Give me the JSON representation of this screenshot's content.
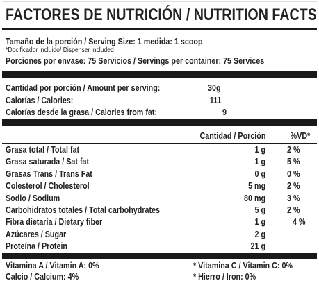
{
  "title": "FACTORES DE NUTRICIÓN / NUTRITION FACTS",
  "serving": {
    "lines": [
      "Tamaño de la porción / Serving Size: 1 medida: 1 scoop",
      "*Docificador incluido/ Dispenser included",
      "Porciones por envase: 75 Servicios / Servings per container: 75 Services"
    ]
  },
  "per_serving": {
    "rows": [
      [
        "Cantidad por porción / Amount per serving:",
        "30g"
      ],
      [
        "Calorías / Calories:",
        "111"
      ],
      [
        "Calorías desde la grasa / Calories from fat:",
        "9"
      ]
    ]
  },
  "table": {
    "header": [
      "Cantidad / Porción",
      "%VD*"
    ],
    "rows": [
      [
        "Grasa total / Total fat",
        "1 g",
        "2 %"
      ],
      [
        "Grasa saturada / Sat fat",
        "1 g",
        "5 %"
      ],
      [
        "Grasas Trans / Trans Fat",
        "0 g",
        "0 %"
      ],
      [
        "Colesterol / Cholesterol",
        "5 mg",
        "2 %"
      ],
      [
        "Sodio / Sodium",
        "80 mg",
        "3 %"
      ],
      [
        "Carbohidratos totales / Total carbohydrates",
        "5 g",
        "2 %"
      ],
      [
        "Fibra dietaría / Dietary fiber",
        "1 g",
        "4 %"
      ],
      [
        "Azúcares / Sugar",
        "2 g"
      ],
      [
        "Proteína / Protein",
        "21 g"
      ]
    ]
  },
  "vitamins": {
    "rows": [
      [
        "Vitamina A / Vitamin A: 0%",
        "* Vitamina C / Vitamin C: 0%"
      ],
      [
        "Calcio / Calcium: 4%",
        "* Hierro / Iron: 0%"
      ]
    ]
  }
}
